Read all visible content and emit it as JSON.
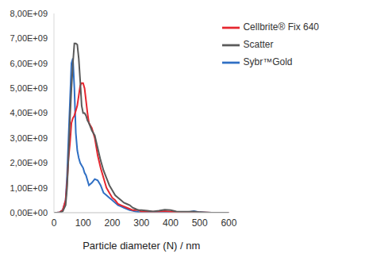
{
  "chart_data": {
    "type": "line",
    "x_label": "Particle diameter (N) / nm",
    "x": [
      0,
      10,
      20,
      30,
      40,
      45,
      50,
      55,
      60,
      65,
      70,
      75,
      80,
      85,
      90,
      95,
      100,
      105,
      110,
      115,
      120,
      130,
      140,
      150,
      160,
      170,
      180,
      190,
      200,
      210,
      220,
      230,
      240,
      250,
      260,
      270,
      280,
      290,
      300,
      320,
      340,
      360,
      380,
      400,
      420,
      440,
      460,
      480,
      500,
      520,
      540,
      560,
      580,
      600
    ],
    "series": [
      {
        "name": "Sybr™Gold",
        "color": "#2f6fc4",
        "values": [
          0,
          0,
          20000000.0,
          100000000.0,
          500000000.0,
          1500000000.0,
          3000000000.0,
          4500000000.0,
          6000000000.0,
          6200000000.0,
          5000000000.0,
          3200000000.0,
          2500000000.0,
          2200000000.0,
          2000000000.0,
          1900000000.0,
          1800000000.0,
          1600000000.0,
          1500000000.0,
          1300000000.0,
          1100000000.0,
          1200000000.0,
          1350000000.0,
          1300000000.0,
          1100000000.0,
          800000000.0,
          700000000.0,
          600000000.0,
          500000000.0,
          400000000.0,
          300000000.0,
          250000000.0,
          200000000.0,
          150000000.0,
          100000000.0,
          80000000.0,
          50000000.0,
          30000000.0,
          20000000.0,
          20000000.0,
          20000000.0,
          20000000.0,
          10000000.0,
          10000000.0,
          10000000.0,
          10000000.0,
          20000000.0,
          60000000.0,
          20000000.0,
          10000000.0,
          0,
          0,
          0,
          0
        ]
      },
      {
        "name": "Cellbrite® Fix 640",
        "color": "#e6262f",
        "values": [
          0,
          0,
          20000000.0,
          100000000.0,
          500000000.0,
          1200000000.0,
          2200000000.0,
          2800000000.0,
          3600000000.0,
          3800000000.0,
          3900000000.0,
          4100000000.0,
          4300000000.0,
          4700000000.0,
          5100000000.0,
          5200000000.0,
          5200000000.0,
          5000000000.0,
          4500000000.0,
          4000000000.0,
          3600000000.0,
          3400000000.0,
          3000000000.0,
          2300000000.0,
          1800000000.0,
          1400000000.0,
          1000000000.0,
          800000000.0,
          600000000.0,
          500000000.0,
          350000000.0,
          300000000.0,
          250000000.0,
          200000000.0,
          150000000.0,
          100000000.0,
          100000000.0,
          100000000.0,
          50000000.0,
          50000000.0,
          40000000.0,
          50000000.0,
          60000000.0,
          40000000.0,
          30000000.0,
          20000000.0,
          20000000.0,
          20000000.0,
          10000000.0,
          10000000.0,
          0,
          0,
          0,
          0
        ]
      },
      {
        "name": "Scatter",
        "color": "#5a5a5a",
        "values": [
          0,
          0,
          10000000.0,
          50000000.0,
          300000000.0,
          1000000000.0,
          2300000000.0,
          3800000000.0,
          5000000000.0,
          6000000000.0,
          6800000000.0,
          6800000000.0,
          6750000000.0,
          6200000000.0,
          5300000000.0,
          4300000000.0,
          4000000000.0,
          4000000000.0,
          3900000000.0,
          3700000000.0,
          3600000000.0,
          3300000000.0,
          3100000000.0,
          2600000000.0,
          2100000000.0,
          1700000000.0,
          1400000000.0,
          1100000000.0,
          900000000.0,
          700000000.0,
          600000000.0,
          500000000.0,
          400000000.0,
          350000000.0,
          300000000.0,
          200000000.0,
          150000000.0,
          100000000.0,
          100000000.0,
          80000000.0,
          50000000.0,
          80000000.0,
          120000000.0,
          100000000.0,
          50000000.0,
          40000000.0,
          40000000.0,
          50000000.0,
          20000000.0,
          10000000.0,
          0,
          0,
          0,
          0
        ]
      }
    ],
    "xlim": [
      0,
      600
    ],
    "xticks": [
      0,
      100,
      200,
      300,
      400,
      500,
      600
    ],
    "ylim": [
      0,
      8000000000.0
    ],
    "yticks": [
      {
        "value": 0,
        "label": "0,00E+00"
      },
      {
        "value": 1000000000.0,
        "label": "1,00E+09"
      },
      {
        "value": 2000000000.0,
        "label": "2,00E+09"
      },
      {
        "value": 3000000000.0,
        "label": "3,00E+09"
      },
      {
        "value": 4000000000.0,
        "label": "4,00E+09"
      },
      {
        "value": 5000000000.0,
        "label": "5,00E+09"
      },
      {
        "value": 6000000000.0,
        "label": "6,00E+09"
      },
      {
        "value": 7000000000.0,
        "label": "7,00E+09"
      },
      {
        "value": 8000000000.0,
        "label": "8,00E+09"
      }
    ],
    "grid": false,
    "legend": "upper right"
  }
}
